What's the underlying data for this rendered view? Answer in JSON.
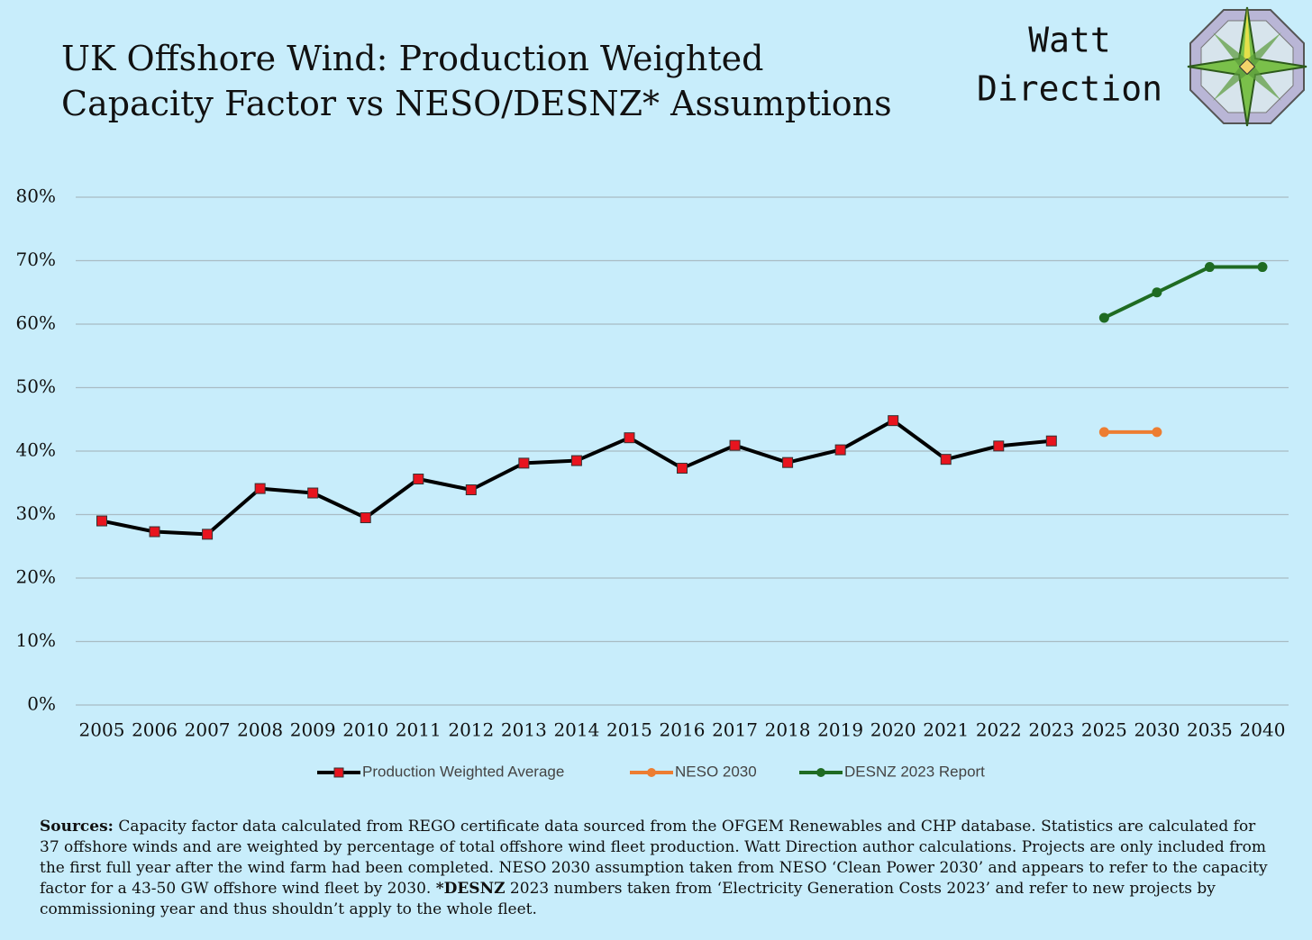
{
  "chart_data": {
    "type": "line",
    "title": "UK Offshore Wind: Production Weighted Capacity Factor vs NESO/DESNZ* Assumptions",
    "categories": [
      "2005",
      "2006",
      "2007",
      "2008",
      "2009",
      "2010",
      "2011",
      "2012",
      "2013",
      "2014",
      "2015",
      "2016",
      "2017",
      "2018",
      "2019",
      "2020",
      "2021",
      "2022",
      "2023",
      "2025",
      "2030",
      "2035",
      "2040"
    ],
    "series": [
      {
        "name": "Production Weighted Average",
        "color": "#000000",
        "marker": "square",
        "marker_color": "#e8141e",
        "values": [
          29,
          27.3,
          26.9,
          34.1,
          33.4,
          29.5,
          35.6,
          33.9,
          38.1,
          38.5,
          42.1,
          37.3,
          40.9,
          38.2,
          40.2,
          44.8,
          38.7,
          40.8,
          41.6,
          null,
          null,
          null,
          null
        ]
      },
      {
        "name": "NESO 2030",
        "color": "#ed7d31",
        "marker": "circle",
        "values": [
          null,
          null,
          null,
          null,
          null,
          null,
          null,
          null,
          null,
          null,
          null,
          null,
          null,
          null,
          null,
          null,
          null,
          null,
          null,
          43,
          43,
          null,
          null
        ]
      },
      {
        "name": "DESNZ 2023 Report",
        "color": "#1f6b22",
        "marker": "circle",
        "values": [
          null,
          null,
          null,
          null,
          null,
          null,
          null,
          null,
          null,
          null,
          null,
          null,
          null,
          null,
          null,
          null,
          null,
          null,
          null,
          61,
          65,
          69,
          69
        ]
      }
    ],
    "ylim": [
      0,
      80
    ],
    "yticks": [
      {
        "value": 0,
        "label": "0%"
      },
      {
        "value": 10,
        "label": "10%"
      },
      {
        "value": 20,
        "label": "20%"
      },
      {
        "value": 30,
        "label": "30%"
      },
      {
        "value": 40,
        "label": "40%"
      },
      {
        "value": 50,
        "label": "50%"
      },
      {
        "value": 60,
        "label": "60%"
      },
      {
        "value": 70,
        "label": "70%"
      },
      {
        "value": 80,
        "label": "80%"
      }
    ],
    "grid": true,
    "legend": "bottom"
  },
  "logo": [
    "Watt",
    "Direction"
  ],
  "sources": {
    "label": "Sources:",
    "text": " Capacity factor data calculated from REGO certificate data sourced from the OFGEM Renewables and CHP database. Statistics are calculated for 37 offshore winds and are weighted by percentage of total offshore wind fleet production. Watt Direction author calculations. Projects are only included from the first full year after the wind farm had been completed. NESO 2030 assumption taken from NESO ‘Clean Power 2030’ and appears to refer to the capacity factor for a 43-50 GW offshore wind fleet by 2030. ",
    "bold": "*DESNZ",
    "text2": " 2023 numbers taken from ‘Electricity Generation Costs 2023’ and refer to new projects by commissioning year and thus shouldn’t apply to the whole fleet."
  }
}
